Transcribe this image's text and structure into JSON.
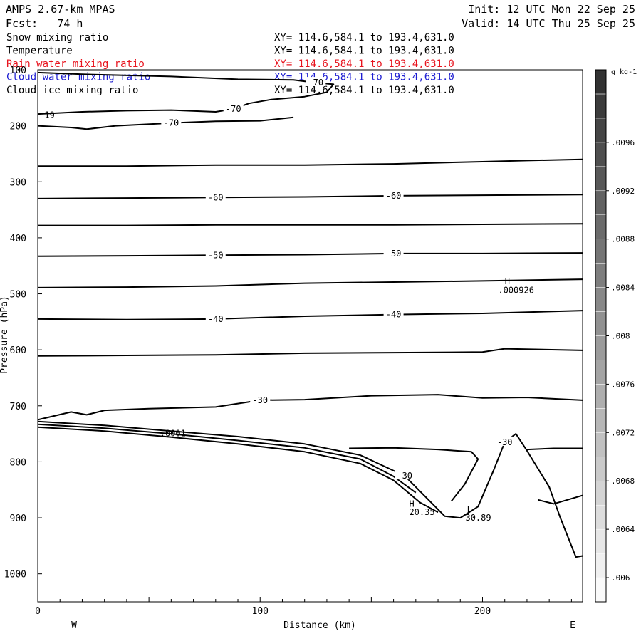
{
  "header": {
    "model": "AMPS 2.67-km MPAS",
    "fcst": "Fcst:   74 h",
    "init": "Init: 12 UTC Mon 22 Sep 25",
    "valid": "Valid: 14 UTC Thu 25 Sep 25"
  },
  "colors": {
    "black": "#000000",
    "rain": "#e8141e",
    "cloud_water": "#1e1ed2",
    "grid": "#000000"
  },
  "fields": [
    {
      "name": "Snow mixing ratio",
      "xy": "XY= 114.6,584.1 to 193.4,631.0",
      "color": "#000000"
    },
    {
      "name": "Temperature",
      "xy": "XY= 114.6,584.1 to 193.4,631.0",
      "color": "#000000"
    },
    {
      "name": "Rain water mixing ratio",
      "xy": "XY= 114.6,584.1 to 193.4,631.0",
      "color": "#e8141e"
    },
    {
      "name": "Cloud water mixing ratio",
      "xy": "XY= 114.6,584.1 to 193.4,631.0",
      "color": "#1e1ed2"
    },
    {
      "name": "Cloud ice mixing ratio",
      "xy": "XY= 114.6,584.1 to 193.4,631.0",
      "color": "#000000"
    }
  ],
  "chart_data": {
    "type": "line",
    "xlabel": "Distance (km)",
    "ylabel": "Pressure (hPa)",
    "xlim": [
      0,
      245
    ],
    "ylim": [
      1050,
      100
    ],
    "x_ticks": [
      0,
      100,
      200
    ],
    "y_ticks": [
      100,
      200,
      300,
      400,
      500,
      600,
      700,
      800,
      900,
      1000
    ],
    "west_label": "W",
    "east_label": "E",
    "series": [
      {
        "label_values": [
          "-70",
          "-70"
        ],
        "points": [
          [
            0,
            105
          ],
          [
            20,
            108
          ],
          [
            60,
            112
          ],
          [
            90,
            117
          ],
          [
            115,
            118
          ],
          [
            125,
            123
          ],
          [
            133,
            126
          ],
          [
            130,
            140
          ],
          [
            120,
            148
          ],
          [
            105,
            153
          ],
          [
            95,
            160
          ],
          [
            88,
            170
          ],
          [
            80,
            175
          ],
          [
            60,
            172
          ],
          [
            40,
            173
          ],
          [
            20,
            175
          ],
          [
            0,
            179
          ]
        ]
      },
      {
        "label_values": [
          "-70"
        ],
        "points": [
          [
            0,
            200
          ],
          [
            15,
            203
          ],
          [
            22,
            206
          ],
          [
            35,
            200
          ],
          [
            60,
            195
          ],
          [
            80,
            192
          ],
          [
            100,
            191
          ],
          [
            115,
            185
          ]
        ]
      },
      {
        "label_values": [],
        "points": [
          [
            0,
            272
          ],
          [
            40,
            272
          ],
          [
            80,
            270
          ],
          [
            120,
            270
          ],
          [
            160,
            268
          ],
          [
            200,
            264
          ],
          [
            220,
            262
          ],
          [
            245,
            260
          ]
        ]
      },
      {
        "label_values": [
          "-60",
          "-60"
        ],
        "points": [
          [
            0,
            330
          ],
          [
            40,
            329
          ],
          [
            80,
            328
          ],
          [
            120,
            327
          ],
          [
            160,
            325
          ],
          [
            200,
            324
          ],
          [
            245,
            323
          ]
        ]
      },
      {
        "label_values": [],
        "points": [
          [
            0,
            378
          ],
          [
            40,
            378
          ],
          [
            80,
            377
          ],
          [
            120,
            377
          ],
          [
            160,
            377
          ],
          [
            200,
            376
          ],
          [
            245,
            375
          ]
        ]
      },
      {
        "label_values": [
          "-50",
          "-50"
        ],
        "points": [
          [
            0,
            433
          ],
          [
            40,
            432
          ],
          [
            80,
            431
          ],
          [
            120,
            430
          ],
          [
            160,
            428
          ],
          [
            200,
            428
          ],
          [
            245,
            427
          ]
        ]
      },
      {
        "label_values": [],
        "points": [
          [
            0,
            489
          ],
          [
            40,
            488
          ],
          [
            80,
            486
          ],
          [
            120,
            481
          ],
          [
            160,
            479
          ],
          [
            200,
            477
          ],
          [
            245,
            474
          ]
        ]
      },
      {
        "label_values": [
          "-40",
          "-40"
        ],
        "points": [
          [
            0,
            545
          ],
          [
            40,
            546
          ],
          [
            80,
            545
          ],
          [
            120,
            540
          ],
          [
            160,
            537
          ],
          [
            200,
            535
          ],
          [
            245,
            530
          ]
        ]
      },
      {
        "label_values": [],
        "points": [
          [
            0,
            611
          ],
          [
            40,
            610
          ],
          [
            80,
            609
          ],
          [
            120,
            606
          ],
          [
            160,
            605
          ],
          [
            200,
            604
          ],
          [
            210,
            598
          ],
          [
            245,
            601
          ]
        ]
      },
      {
        "label_values": [
          "-30"
        ],
        "points": [
          [
            0,
            725
          ],
          [
            15,
            711
          ],
          [
            22,
            716
          ],
          [
            30,
            708
          ],
          [
            50,
            705
          ],
          [
            80,
            702
          ],
          [
            100,
            690
          ],
          [
            120,
            689
          ],
          [
            150,
            682
          ],
          [
            180,
            680
          ],
          [
            200,
            686
          ],
          [
            220,
            685
          ],
          [
            245,
            690
          ]
        ]
      },
      {
        "label_values": [
          "-30",
          "-30"
        ],
        "points": [
          [
            0,
            728
          ],
          [
            30,
            735
          ],
          [
            60,
            745
          ],
          [
            90,
            755
          ],
          [
            120,
            768
          ],
          [
            145,
            788
          ],
          [
            165,
            825
          ],
          [
            175,
            865
          ],
          [
            183,
            897
          ],
          [
            190,
            900
          ],
          [
            198,
            880
          ],
          [
            205,
            815
          ],
          [
            210,
            765
          ],
          [
            215,
            750
          ],
          [
            220,
            780
          ],
          [
            230,
            845
          ],
          [
            235,
            900
          ],
          [
            242,
            970
          ],
          [
            245,
            968
          ]
        ]
      },
      {
        "label_values": [],
        "points": [
          [
            0,
            733
          ],
          [
            30,
            740
          ],
          [
            60,
            750
          ],
          [
            90,
            762
          ],
          [
            120,
            775
          ],
          [
            145,
            795
          ],
          [
            160,
            826
          ],
          [
            170,
            855
          ]
        ]
      },
      {
        "label_values": [],
        "points": [
          [
            0,
            738
          ],
          [
            30,
            745
          ],
          [
            60,
            756
          ],
          [
            90,
            768
          ],
          [
            120,
            782
          ],
          [
            145,
            803
          ],
          [
            160,
            833
          ],
          [
            172,
            873
          ],
          [
            180,
            890
          ]
        ]
      },
      {
        "label_values": [],
        "points": [
          [
            140,
            776
          ],
          [
            160,
            775
          ],
          [
            180,
            778
          ],
          [
            195,
            782
          ],
          [
            198,
            795
          ],
          [
            192,
            840
          ],
          [
            186,
            870
          ]
        ]
      },
      {
        "label_values": [],
        "points": [
          [
            220,
            778
          ],
          [
            232,
            776
          ],
          [
            245,
            776
          ]
        ]
      },
      {
        "label_values": [],
        "points": [
          [
            225,
            868
          ],
          [
            232,
            875
          ],
          [
            245,
            860
          ]
        ]
      }
    ],
    "annotations": [
      {
        "text": "19",
        "x": 3,
        "y": 186
      },
      {
        "text": "H",
        "x": 210,
        "y": 483
      },
      {
        "text": ".000926",
        "x": 207,
        "y": 499
      },
      {
        "text": "H",
        "x": 167,
        "y": 880
      },
      {
        "text": "20.35",
        "x": 167,
        "y": 895
      },
      {
        "text": "L",
        "x": 193,
        "y": 890
      },
      {
        "text": "-30.89",
        "x": 190,
        "y": 905
      },
      {
        "text": ".0001",
        "x": 55,
        "y": 754
      }
    ],
    "colorbar": {
      "unit": "g kg-1",
      "min": 0.0058,
      "max": 0.0102,
      "levels": [
        0.0058,
        0.006,
        0.0062,
        0.0064,
        0.0066,
        0.0068,
        0.007,
        0.0072,
        0.0074,
        0.0076,
        0.0078,
        0.008,
        0.0082,
        0.0084,
        0.0086,
        0.0088,
        0.009,
        0.0092,
        0.0094,
        0.0096,
        0.0098,
        0.01,
        0.0102
      ],
      "tick_labels": [
        ".006",
        ".0064",
        ".0068",
        ".0072",
        ".0076",
        ".008",
        ".0084",
        ".0088",
        ".0092",
        ".0096"
      ]
    }
  }
}
